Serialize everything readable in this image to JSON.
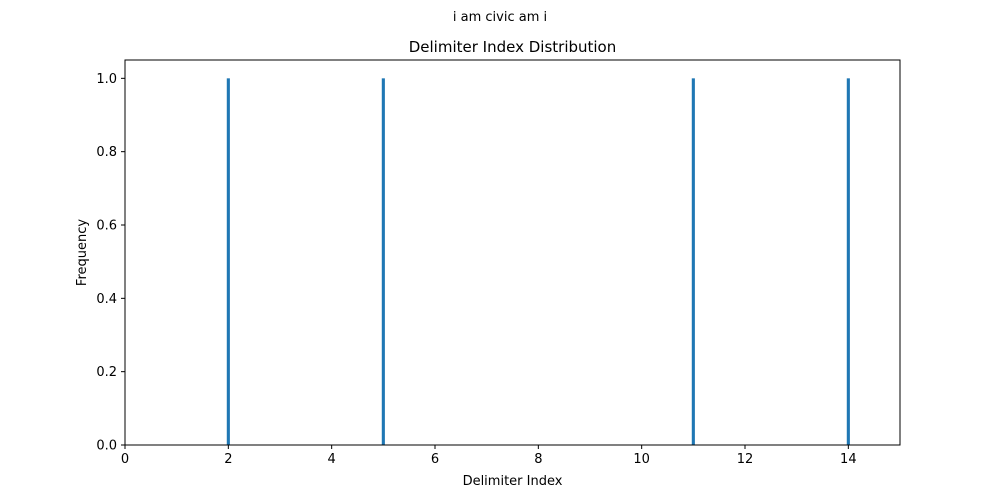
{
  "chart_data": {
    "type": "bar",
    "suptitle": "i am civic am i",
    "title": "Delimiter Index Distribution",
    "xlabel": "Delimiter Index",
    "ylabel": "Frequency",
    "x": [
      2,
      5,
      11,
      14
    ],
    "values": [
      1.0,
      1.0,
      1.0,
      1.0
    ],
    "xlim": [
      0,
      15
    ],
    "ylim": [
      0,
      1.05
    ],
    "xticks": [
      0,
      2,
      4,
      6,
      8,
      10,
      12,
      14
    ],
    "xtick_labels": [
      "0",
      "2",
      "4",
      "6",
      "8",
      "10",
      "12",
      "14"
    ],
    "yticks": [
      0,
      0.2,
      0.4,
      0.6,
      0.8,
      1.0
    ],
    "ytick_labels": [
      "0.0",
      "0.2",
      "0.4",
      "0.6",
      "0.8",
      "1.0"
    ],
    "bar_width": 0.06,
    "bar_color": "#1f77b4",
    "grid": false,
    "legend": "none"
  }
}
